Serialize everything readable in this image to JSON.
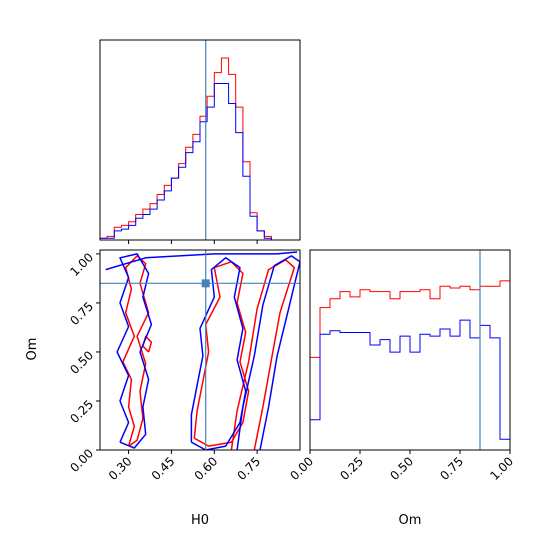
{
  "chart_data": {
    "type": "corner",
    "parameters": [
      "H0",
      "Om"
    ],
    "truth": {
      "H0": 0.57,
      "Om": 0.85
    },
    "colors": {
      "red_series": "#ff0000",
      "blue_series": "#0000ff",
      "truth": "#4682b4"
    },
    "panels": [
      {
        "id": "hist-H0",
        "type": "histogram",
        "xlim": [
          0.2,
          0.9
        ],
        "ylim": [
          0,
          1
        ],
        "xticks": [
          0.3,
          0.45,
          0.6,
          0.75
        ],
        "bins": {
          "start": 0.2,
          "width": 0.025
        },
        "series": [
          {
            "values": [
              0.01,
              0.02,
              0.07,
              0.08,
              0.1,
              0.14,
              0.17,
              0.2,
              0.25,
              0.3,
              0.34,
              0.42,
              0.51,
              0.58,
              0.68,
              0.79,
              0.92,
              1.0,
              0.91,
              0.73,
              0.43,
              0.15,
              0.05,
              0.02,
              0.0,
              0.0,
              0.0,
              0.0
            ]
          },
          {
            "values": [
              0.01,
              0.01,
              0.05,
              0.06,
              0.08,
              0.12,
              0.14,
              0.17,
              0.22,
              0.27,
              0.34,
              0.4,
              0.48,
              0.54,
              0.65,
              0.73,
              0.86,
              0.86,
              0.75,
              0.59,
              0.35,
              0.13,
              0.05,
              0.01,
              0.0,
              0.0,
              0.0,
              0.0
            ]
          }
        ]
      },
      {
        "id": "hist-Om",
        "type": "histogram",
        "xlim": [
          0.0,
          1.0
        ],
        "ylim": [
          0,
          1
        ],
        "xticks": [
          0.0,
          0.25,
          0.5,
          0.75,
          1.0
        ],
        "xticklabels": [
          "0.00",
          "0.25",
          "0.50",
          "0.75",
          "1.00"
        ],
        "xlabel": "Om",
        "bins": {
          "start": 0.0,
          "width": 0.05
        },
        "series": [
          {
            "values": [
              0.52,
              0.8,
              0.85,
              0.89,
              0.86,
              0.9,
              0.89,
              0.89,
              0.85,
              0.89,
              0.89,
              0.9,
              0.85,
              0.92,
              0.91,
              0.92,
              0.9,
              0.92,
              0.92,
              0.95
            ]
          },
          {
            "values": [
              0.17,
              0.65,
              0.67,
              0.66,
              0.66,
              0.66,
              0.59,
              0.62,
              0.55,
              0.64,
              0.55,
              0.65,
              0.64,
              0.68,
              0.64,
              0.73,
              0.63,
              0.7,
              0.63,
              0.06
            ]
          }
        ]
      },
      {
        "id": "contour-H0-Om",
        "type": "contour",
        "xlim": [
          0.2,
          0.9
        ],
        "ylim": [
          0.0,
          1.02
        ],
        "xticks": [
          0.3,
          0.45,
          0.6,
          0.75
        ],
        "xticklabels": [
          "0.30",
          "0.45",
          "0.60",
          "0.75"
        ],
        "yticks": [
          0.0,
          0.25,
          0.5,
          0.75,
          1.0
        ],
        "yticklabels": [
          "0.00",
          "0.25",
          "0.50",
          "0.75",
          "1.00"
        ],
        "xlabel": "H0",
        "ylabel": "Om",
        "series": [
          {
            "contours": [
              [
                [
                  0.3,
                  0.02
                ],
                [
                  0.32,
                  0.12
                ],
                [
                  0.3,
                  0.22
                ],
                [
                  0.31,
                  0.36
                ],
                [
                  0.28,
                  0.45
                ],
                [
                  0.32,
                  0.58
                ],
                [
                  0.29,
                  0.7
                ],
                [
                  0.31,
                  0.82
                ],
                [
                  0.29,
                  0.93
                ],
                [
                  0.33,
                  0.99
                ],
                [
                  0.36,
                  0.95
                ],
                [
                  0.34,
                  0.85
                ],
                [
                  0.37,
                  0.7
                ],
                [
                  0.33,
                  0.58
                ],
                [
                  0.36,
                  0.44
                ],
                [
                  0.34,
                  0.3
                ],
                [
                  0.35,
                  0.16
                ],
                [
                  0.33,
                  0.05
                ],
                [
                  0.3,
                  0.02
                ]
              ],
              [
                [
                  0.53,
                  0.06
                ],
                [
                  0.54,
                  0.2
                ],
                [
                  0.56,
                  0.35
                ],
                [
                  0.58,
                  0.5
                ],
                [
                  0.57,
                  0.64
                ],
                [
                  0.62,
                  0.78
                ],
                [
                  0.6,
                  0.93
                ],
                [
                  0.66,
                  0.96
                ],
                [
                  0.7,
                  0.9
                ],
                [
                  0.68,
                  0.75
                ],
                [
                  0.71,
                  0.6
                ],
                [
                  0.69,
                  0.45
                ],
                [
                  0.72,
                  0.3
                ],
                [
                  0.7,
                  0.14
                ],
                [
                  0.66,
                  0.04
                ],
                [
                  0.58,
                  0.02
                ],
                [
                  0.53,
                  0.06
                ]
              ],
              [
                [
                  0.66,
                  0.0
                ],
                [
                  0.68,
                  0.2
                ],
                [
                  0.72,
                  0.45
                ],
                [
                  0.75,
                  0.72
                ],
                [
                  0.79,
                  0.92
                ],
                [
                  0.85,
                  0.97
                ],
                [
                  0.88,
                  0.93
                ],
                [
                  0.83,
                  0.7
                ],
                [
                  0.8,
                  0.46
                ],
                [
                  0.77,
                  0.22
                ],
                [
                  0.74,
                  0.0
                ]
              ],
              [
                [
                  0.37,
                  0.5
                ],
                [
                  0.38,
                  0.55
                ],
                [
                  0.36,
                  0.58
                ],
                [
                  0.35,
                  0.53
                ],
                [
                  0.37,
                  0.5
                ]
              ]
            ]
          },
          {
            "contours": [
              [
                [
                  0.27,
                  0.04
                ],
                [
                  0.3,
                  0.14
                ],
                [
                  0.27,
                  0.25
                ],
                [
                  0.3,
                  0.38
                ],
                [
                  0.26,
                  0.5
                ],
                [
                  0.3,
                  0.63
                ],
                [
                  0.27,
                  0.75
                ],
                [
                  0.3,
                  0.88
                ],
                [
                  0.27,
                  0.98
                ],
                [
                  0.33,
                  1.0
                ],
                [
                  0.37,
                  0.9
                ],
                [
                  0.35,
                  0.78
                ],
                [
                  0.38,
                  0.64
                ],
                [
                  0.34,
                  0.5
                ],
                [
                  0.37,
                  0.36
                ],
                [
                  0.35,
                  0.22
                ],
                [
                  0.36,
                  0.08
                ],
                [
                  0.32,
                  0.01
                ],
                [
                  0.27,
                  0.04
                ]
              ],
              [
                [
                  0.52,
                  0.04
                ],
                [
                  0.52,
                  0.18
                ],
                [
                  0.54,
                  0.33
                ],
                [
                  0.56,
                  0.48
                ],
                [
                  0.55,
                  0.62
                ],
                [
                  0.6,
                  0.78
                ],
                [
                  0.59,
                  0.92
                ],
                [
                  0.64,
                  0.98
                ],
                [
                  0.69,
                  0.93
                ],
                [
                  0.67,
                  0.78
                ],
                [
                  0.7,
                  0.62
                ],
                [
                  0.68,
                  0.46
                ],
                [
                  0.71,
                  0.3
                ],
                [
                  0.69,
                  0.14
                ],
                [
                  0.64,
                  0.02
                ],
                [
                  0.57,
                  0.0
                ],
                [
                  0.52,
                  0.04
                ]
              ],
              [
                [
                  0.68,
                  0.0
                ],
                [
                  0.7,
                  0.22
                ],
                [
                  0.74,
                  0.48
                ],
                [
                  0.77,
                  0.74
                ],
                [
                  0.81,
                  0.94
                ],
                [
                  0.87,
                  0.99
                ],
                [
                  0.9,
                  0.96
                ],
                [
                  0.86,
                  0.72
                ],
                [
                  0.82,
                  0.48
                ],
                [
                  0.79,
                  0.22
                ],
                [
                  0.76,
                  0.0
                ]
              ],
              [
                [
                  0.22,
                  0.92
                ],
                [
                  0.36,
                  0.98
                ],
                [
                  0.6,
                  1.0
                ],
                [
                  0.82,
                  1.0
                ],
                [
                  0.89,
                  1.01
                ]
              ]
            ]
          }
        ]
      }
    ]
  }
}
